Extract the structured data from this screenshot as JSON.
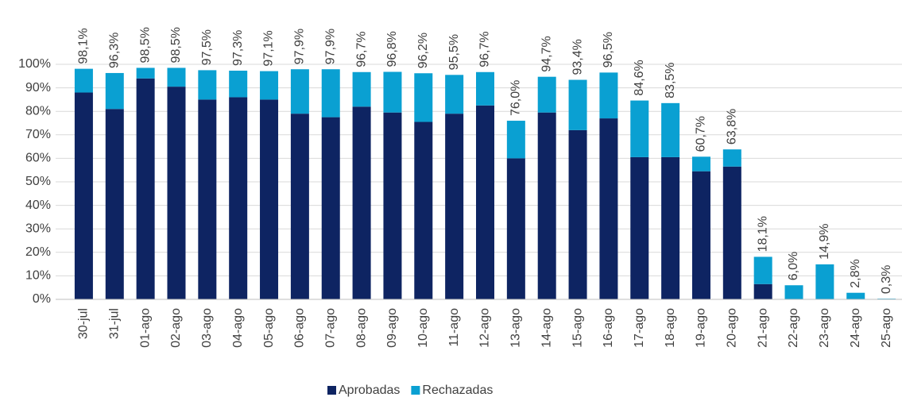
{
  "chart_data": {
    "type": "stacked_bar",
    "categories": [
      "30-jul",
      "31-jul",
      "01-ago",
      "02-ago",
      "03-ago",
      "04-ago",
      "05-ago",
      "06-ago",
      "07-ago",
      "08-ago",
      "09-ago",
      "10-ago",
      "11-ago",
      "12-ago",
      "13-ago",
      "14-ago",
      "15-ago",
      "16-ago",
      "17-ago",
      "18-ago",
      "19-ago",
      "20-ago",
      "21-ago",
      "22-ago",
      "23-ago",
      "24-ago",
      "25-ago"
    ],
    "series": [
      {
        "name": "Aprobadas",
        "color": "#0e2462",
        "values": [
          88,
          81,
          94,
          90.5,
          85,
          86,
          85,
          79,
          77.5,
          82,
          79.5,
          75.5,
          79,
          82.5,
          60,
          79.5,
          72,
          77,
          60.5,
          60.5,
          54.5,
          56.5,
          6.5,
          0,
          0,
          0,
          0
        ]
      },
      {
        "name": "Rechazadas",
        "color": "#0aa0d2",
        "values": [
          10.1,
          15.3,
          4.5,
          8.0,
          12.5,
          11.3,
          12.1,
          18.9,
          20.4,
          14.7,
          17.3,
          20.7,
          16.5,
          14.2,
          16.0,
          15.2,
          21.4,
          19.5,
          24.1,
          23.0,
          6.2,
          7.3,
          11.6,
          6.0,
          14.9,
          2.8,
          0.3
        ]
      }
    ],
    "totals": [
      98.1,
      96.3,
      98.5,
      98.5,
      97.5,
      97.3,
      97.1,
      97.9,
      97.9,
      96.7,
      96.8,
      96.2,
      95.5,
      96.7,
      76.0,
      94.7,
      93.4,
      96.5,
      84.6,
      83.5,
      60.7,
      63.8,
      18.1,
      6.0,
      14.9,
      2.8,
      0.3
    ],
    "total_labels": [
      "98,1%",
      "96,3%",
      "98,5%",
      "98,5%",
      "97,5%",
      "97,3%",
      "97,1%",
      "97,9%",
      "97,9%",
      "96,7%",
      "96,8%",
      "96,2%",
      "95,5%",
      "96,7%",
      "76,0%",
      "94,7%",
      "93,4%",
      "96,5%",
      "84,6%",
      "83,5%",
      "60,7%",
      "63,8%",
      "18,1%",
      "6,0%",
      "14,9%",
      "2,8%",
      "0,3%"
    ],
    "ylim": [
      0,
      100
    ],
    "yticks": [
      {
        "value": 0,
        "label": "0%"
      },
      {
        "value": 10,
        "label": "10%"
      },
      {
        "value": 20,
        "label": "20%"
      },
      {
        "value": 30,
        "label": "30%"
      },
      {
        "value": 40,
        "label": "40%"
      },
      {
        "value": 50,
        "label": "50%"
      },
      {
        "value": 60,
        "label": "60%"
      },
      {
        "value": 70,
        "label": "70%"
      },
      {
        "value": 80,
        "label": "80%"
      },
      {
        "value": 90,
        "label": "90%"
      },
      {
        "value": 100,
        "label": "100%"
      }
    ],
    "grid": true,
    "legend": "bottom"
  }
}
